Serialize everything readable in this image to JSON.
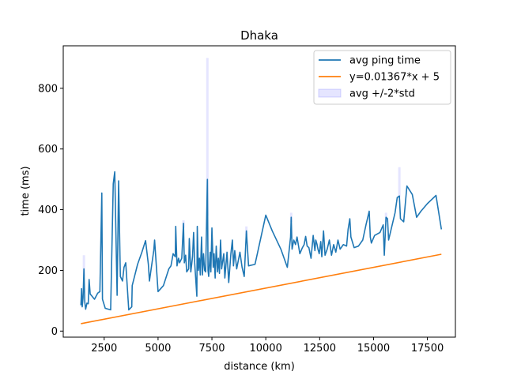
{
  "chart_data": {
    "type": "line",
    "title": "Dhaka",
    "xlabel": "distance (km)",
    "ylabel": "time (ms)",
    "xlim": [
      600,
      18800
    ],
    "ylim": [
      -20,
      940
    ],
    "xticks": [
      2500,
      5000,
      7500,
      10000,
      12500,
      15000,
      17500
    ],
    "yticks": [
      0,
      200,
      400,
      600,
      800
    ],
    "grid": false,
    "legend_position": "top-right",
    "series": [
      {
        "name": "avg ping time",
        "kind": "line",
        "color": "#1f77b4",
        "points": [
          [
            1420,
            85
          ],
          [
            1450,
            140
          ],
          [
            1480,
            80
          ],
          [
            1520,
            110
          ],
          [
            1560,
            205
          ],
          [
            1600,
            95
          ],
          [
            1640,
            72
          ],
          [
            1700,
            92
          ],
          [
            1760,
            90
          ],
          [
            1800,
            170
          ],
          [
            1850,
            122
          ],
          [
            1900,
            118
          ],
          [
            2050,
            105
          ],
          [
            2200,
            125
          ],
          [
            2300,
            130
          ],
          [
            2390,
            455
          ],
          [
            2420,
            105
          ],
          [
            2550,
            75
          ],
          [
            2800,
            70
          ],
          [
            2920,
            485
          ],
          [
            2990,
            525
          ],
          [
            3100,
            118
          ],
          [
            3170,
            495
          ],
          [
            3250,
            180
          ],
          [
            3350,
            165
          ],
          [
            3420,
            210
          ],
          [
            3500,
            225
          ],
          [
            3640,
            70
          ],
          [
            3780,
            80
          ],
          [
            3800,
            150
          ],
          [
            4050,
            220
          ],
          [
            4250,
            260
          ],
          [
            4420,
            298
          ],
          [
            4550,
            220
          ],
          [
            4600,
            165
          ],
          [
            4800,
            265
          ],
          [
            4840,
            300
          ],
          [
            5000,
            130
          ],
          [
            5250,
            150
          ],
          [
            5500,
            205
          ],
          [
            5600,
            215
          ],
          [
            5700,
            255
          ],
          [
            5800,
            245
          ],
          [
            5820,
            345
          ],
          [
            5880,
            215
          ],
          [
            5950,
            240
          ],
          [
            6000,
            225
          ],
          [
            6100,
            240
          ],
          [
            6180,
            355
          ],
          [
            6220,
            225
          ],
          [
            6280,
            250
          ],
          [
            6330,
            195
          ],
          [
            6420,
            205
          ],
          [
            6450,
            305
          ],
          [
            6520,
            195
          ],
          [
            6600,
            245
          ],
          [
            6650,
            325
          ],
          [
            6700,
            225
          ],
          [
            6800,
            115
          ],
          [
            6820,
            345
          ],
          [
            6870,
            200
          ],
          [
            6920,
            240
          ],
          [
            6960,
            185
          ],
          [
            7020,
            310
          ],
          [
            7060,
            185
          ],
          [
            7110,
            255
          ],
          [
            7160,
            200
          ],
          [
            7210,
            195
          ],
          [
            7290,
            500
          ],
          [
            7320,
            200
          ],
          [
            7350,
            180
          ],
          [
            7420,
            260
          ],
          [
            7450,
            195
          ],
          [
            7500,
            340
          ],
          [
            7560,
            210
          ],
          [
            7600,
            255
          ],
          [
            7650,
            175
          ],
          [
            7700,
            280
          ],
          [
            7760,
            195
          ],
          [
            7800,
            240
          ],
          [
            7850,
            190
          ],
          [
            7900,
            300
          ],
          [
            7950,
            205
          ],
          [
            8050,
            255
          ],
          [
            8100,
            175
          ],
          [
            8200,
            260
          ],
          [
            8280,
            160
          ],
          [
            8380,
            255
          ],
          [
            8450,
            300
          ],
          [
            8500,
            215
          ],
          [
            8560,
            265
          ],
          [
            8650,
            205
          ],
          [
            8800,
            260
          ],
          [
            8900,
            210
          ],
          [
            9000,
            180
          ],
          [
            9100,
            330
          ],
          [
            9200,
            215
          ],
          [
            9500,
            220
          ],
          [
            9700,
            285
          ],
          [
            10000,
            382
          ],
          [
            10300,
            330
          ],
          [
            10700,
            270
          ],
          [
            11000,
            210
          ],
          [
            11150,
            310
          ],
          [
            11180,
            375
          ],
          [
            11220,
            270
          ],
          [
            11300,
            300
          ],
          [
            11380,
            285
          ],
          [
            11450,
            310
          ],
          [
            11580,
            255
          ],
          [
            11700,
            275
          ],
          [
            11780,
            285
          ],
          [
            11850,
            312
          ],
          [
            11920,
            280
          ],
          [
            12000,
            275
          ],
          [
            12100,
            240
          ],
          [
            12200,
            315
          ],
          [
            12280,
            265
          ],
          [
            12320,
            300
          ],
          [
            12380,
            285
          ],
          [
            12420,
            270
          ],
          [
            12480,
            255
          ],
          [
            12550,
            295
          ],
          [
            12600,
            245
          ],
          [
            12680,
            330
          ],
          [
            12750,
            250
          ],
          [
            12850,
            270
          ],
          [
            12950,
            300
          ],
          [
            13050,
            250
          ],
          [
            13150,
            285
          ],
          [
            13250,
            260
          ],
          [
            13350,
            300
          ],
          [
            13450,
            270
          ],
          [
            13600,
            285
          ],
          [
            13750,
            280
          ],
          [
            13820,
            335
          ],
          [
            13900,
            370
          ],
          [
            13950,
            310
          ],
          [
            14100,
            275
          ],
          [
            14300,
            280
          ],
          [
            14500,
            300
          ],
          [
            14650,
            350
          ],
          [
            14800,
            395
          ],
          [
            14850,
            310
          ],
          [
            14900,
            290
          ],
          [
            15050,
            315
          ],
          [
            15300,
            325
          ],
          [
            15450,
            350
          ],
          [
            15500,
            250
          ],
          [
            15580,
            375
          ],
          [
            15650,
            370
          ],
          [
            15700,
            300
          ],
          [
            15850,
            345
          ],
          [
            16000,
            390
          ],
          [
            16100,
            440
          ],
          [
            16200,
            445
          ],
          [
            16250,
            370
          ],
          [
            16400,
            360
          ],
          [
            16550,
            478
          ],
          [
            16800,
            450
          ],
          [
            17000,
            375
          ],
          [
            17200,
            395
          ],
          [
            17500,
            420
          ],
          [
            17900,
            447
          ],
          [
            18150,
            335
          ]
        ]
      },
      {
        "name": "y=0.01367*x + 5",
        "kind": "line",
        "color": "#ff7f0e",
        "slope": 0.01367,
        "intercept": 5,
        "x_range": [
          1420,
          18150
        ]
      },
      {
        "name": "avg +/-2*std",
        "kind": "band",
        "color": "#0000ff",
        "opacity": 0.1,
        "bands": [
          [
            1560,
            180,
            250
          ],
          [
            7290,
            380,
            900
          ],
          [
            16200,
            440,
            540
          ],
          [
            15580,
            360,
            390
          ],
          [
            6180,
            340,
            365
          ],
          [
            9100,
            315,
            345
          ],
          [
            11180,
            360,
            390
          ]
        ]
      }
    ]
  }
}
